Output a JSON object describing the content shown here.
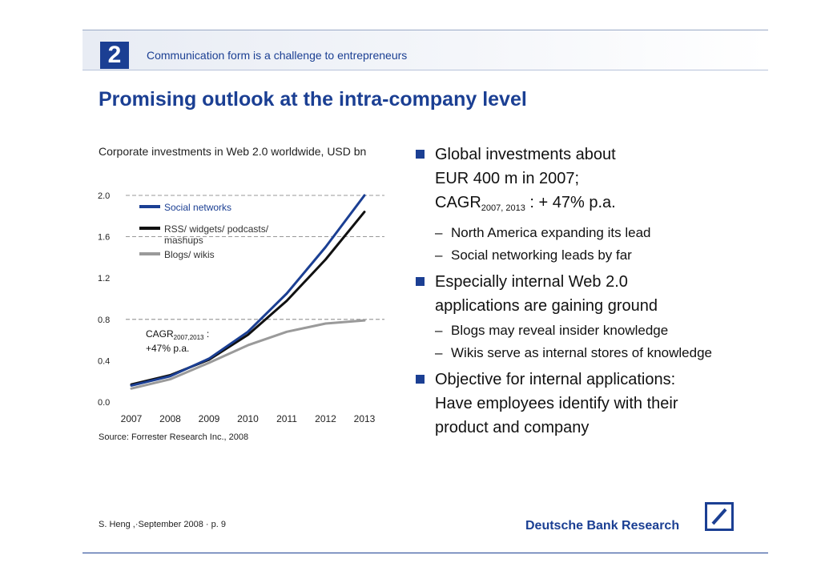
{
  "header": {
    "section_number": "2",
    "subtitle": "Communication form is a challenge to entrepreneurs"
  },
  "title": "Promising outlook at the intra-company level",
  "chart_caption": "Corporate investments in Web 2.0 worldwide, USD bn",
  "source": "Source: Forrester Research Inc., 2008",
  "chart_data": {
    "type": "line",
    "title": "Corporate investments in Web 2.0 worldwide, USD bn",
    "xlabel": "",
    "ylabel": "USD bn",
    "x": [
      2007,
      2008,
      2009,
      2010,
      2011,
      2012,
      2013
    ],
    "ylim": [
      0.0,
      2.0
    ],
    "yticks": [
      "0.0",
      "0.4",
      "0.8",
      "1.2",
      "1.6",
      "2.0"
    ],
    "gridlines_dashed_at": [
      0.8,
      1.6,
      2.0
    ],
    "series": [
      {
        "name": "Social networks",
        "color": "#1b3f93",
        "values": [
          0.16,
          0.25,
          0.42,
          0.68,
          1.05,
          1.5,
          2.0
        ]
      },
      {
        "name": "RSS/ widgets/ podcasts/ mashups",
        "color": "#111111",
        "values": [
          0.17,
          0.26,
          0.41,
          0.65,
          0.98,
          1.38,
          1.84
        ]
      },
      {
        "name": "Blogs/ wikis",
        "color": "#9a9a9a",
        "values": [
          0.13,
          0.22,
          0.38,
          0.55,
          0.68,
          0.76,
          0.79
        ]
      }
    ],
    "legend_labels": [
      "Social networks",
      "RSS/ widgets/ podcasts/",
      "mashups",
      "Blogs/ wikis"
    ],
    "annotation": {
      "line1_main": "CAGR",
      "line1_sub": "2007,2013",
      "line1_tail": " :",
      "line2": "+47% p.a."
    }
  },
  "bullets": [
    {
      "lines": [
        {
          "text": "Global investments about"
        },
        {
          "text": "EUR 400 m in 2007;"
        },
        {
          "text": "CAGR",
          "sub": "2007, 2013",
          "tail": " : + 47% p.a."
        }
      ],
      "subs": [
        "North America expanding its lead",
        "Social networking leads by far"
      ]
    },
    {
      "lines": [
        {
          "text": "Especially internal Web 2.0"
        },
        {
          "text": "applications are gaining ground"
        }
      ],
      "subs": [
        "Blogs may reveal insider knowledge",
        "Wikis serve as internal stores of knowledge"
      ]
    },
    {
      "lines": [
        {
          "text": "Objective for internal applications:"
        },
        {
          "text": "Have employees identify with their"
        },
        {
          "text": "product and company"
        }
      ],
      "subs": []
    }
  ],
  "footer": {
    "author": "S. Heng ,·September 2008 ·  p. 9",
    "brand": "Deutsche Bank Research"
  },
  "colors": {
    "brand_blue": "#1b3f93",
    "gray_series": "#9a9a9a"
  }
}
